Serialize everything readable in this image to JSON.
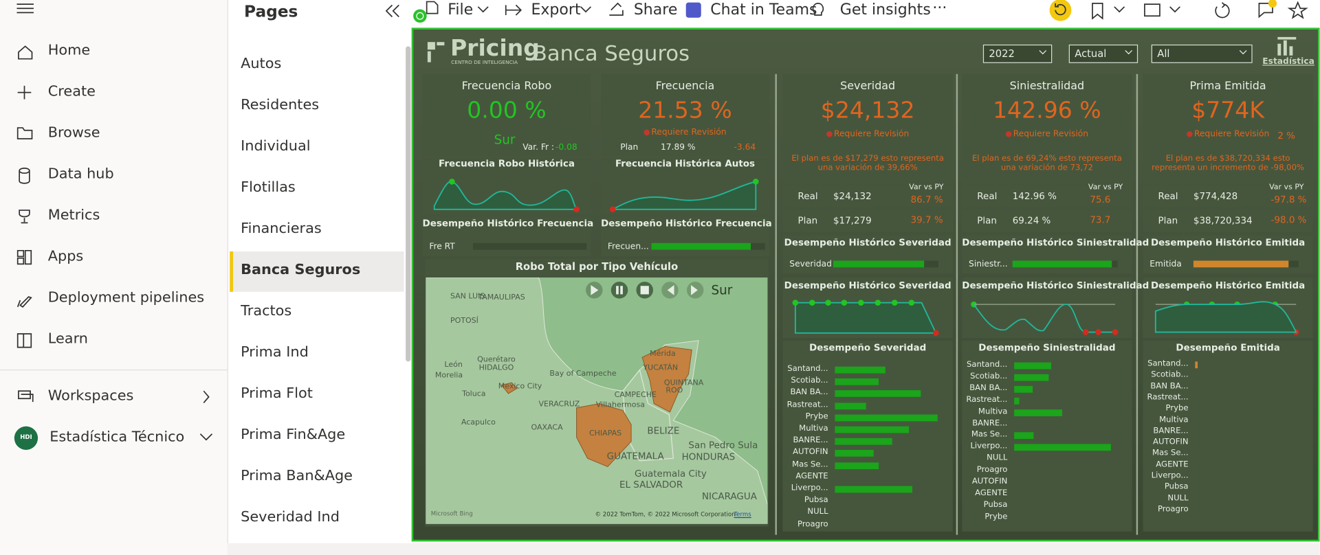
{
  "toolbar": {
    "items": [
      "File",
      "Export",
      "Share",
      "Chat in Teams",
      "Get insights"
    ]
  },
  "nav": {
    "items": [
      "Home",
      "Create",
      "Browse",
      "Data hub",
      "Metrics",
      "Apps",
      "Deployment pipelines",
      "Learn"
    ],
    "workspaces": "Workspaces",
    "workspace": "Estadística Técnico",
    "workspace_badge": "HDI"
  },
  "pages": {
    "title": "Pages",
    "items": [
      "Autos",
      "Residentes",
      "Individual",
      "Flotillas",
      "Financieras",
      "Banca Seguros",
      "Tractos",
      "Prima Ind",
      "Prima Flot",
      "Prima Fin&Age",
      "Prima Ban&Age",
      "Severidad Ind"
    ],
    "active": 5
  },
  "report": {
    "brand": "Pricing",
    "brand_sub": "CENTRO DE INTELIGENCIA",
    "title": "Banca Seguros",
    "filters": [
      "2022",
      "Actual",
      "All"
    ],
    "logo_label": "Estadística",
    "cards": [
      {
        "title": "Frecuencia Robo",
        "value": "0.00 %",
        "sub": "Sur",
        "var_label": "Var. Fr :",
        "var": "-0.08",
        "trend_title": "Frecuencia Robo Histórica",
        "hist_title": "Desempeño Histórico Frecuencia",
        "hist_label": "Fre RT",
        "hist_bar": 0
      },
      {
        "title": "Frecuencia",
        "value": "21.53 %",
        "status": "Requiere Revisión",
        "plan_label": "Plan",
        "plan": "17.89 %",
        "var": "-3.64",
        "trend_title": "Frecuencia Histórica Autos",
        "hist_title": "Desempeño Histórico Frecuencia",
        "hist_label": "Frecuen...",
        "hist_bar": 118
      }
    ],
    "map": {
      "title": "Robo Total por Tipo Vehículo",
      "player_label": "Sur",
      "labels": [
        "TAMAULIPAS",
        "SAN LUIS",
        "POTOSÍ",
        "Querétaro",
        "HIDALGO",
        "León",
        "Morelia",
        "Toluca",
        "Mexico City",
        "Bay of Campeche",
        "VERACRUZ",
        "CAMPECHE",
        "Villahermosa",
        "OAXACA",
        "Acapulco",
        "CHIAPAS",
        "Mérida",
        "YUCATÁN",
        "QUINTANA",
        "ROO",
        "BELIZE",
        "GUATEMALA",
        "San Pedro Sula",
        "HONDURAS",
        "Guatemala City",
        "EL SALVADOR",
        "NICARAGUA"
      ],
      "bing": "Microsoft Bing",
      "attribution": "© 2022 TomTom, © 2022 Microsoft Corporation",
      "terms": "Terms"
    },
    "columns": [
      {
        "title": "Severidad",
        "value": "$24,132",
        "status": "Requiere Revisión",
        "note": [
          "El plan es de $17,279 esto representa",
          "una variación de 39,66%"
        ],
        "real_label": "Real",
        "real": "$24,132",
        "var_header": "Var vs PY",
        "real_var": "86.7 %",
        "plan_label": "Plan",
        "plan": "$17,279",
        "plan_var": "39.7 %",
        "hist_title": "Desempeño Histórico Severidad",
        "hist_label": "Severidad",
        "hist_bar": 108,
        "trend_title": "Desempeño Histórico Severidad",
        "perf_title": "Desempeño Severidad",
        "perf_categories": [
          "Santand...",
          "Scotiab...",
          "BAN BA...",
          "Rastreat...",
          "Prybe",
          "Multiva",
          "BANRE...",
          "AUTOFIN",
          "Mas Se...",
          "AGENTE",
          "Liverpo...",
          "Pubsa",
          "NULL",
          "Proagro"
        ],
        "perf_values": [
          60,
          52,
          102,
          37,
          122,
          88,
          68,
          46,
          52,
          0,
          92,
          0,
          0,
          0
        ]
      },
      {
        "title": "Siniestralidad",
        "value": "142.96 %",
        "status": "Requiere Revisión",
        "note": [
          "El plan es de 69,24% esto representa",
          "una variación de 73,72"
        ],
        "real_label": "Real",
        "real": "142.96 %",
        "var_header": "Var vs PY",
        "real_var": "75.6",
        "plan_label": "Plan",
        "plan": "69.24 %",
        "plan_var": "73.7",
        "hist_title": "Desempeño Histórico Siniestralidad",
        "hist_label": "Siniestr...",
        "hist_bar": 118,
        "trend_title": "Desempeño Histórico Siniestralidad",
        "perf_title": "Desempeño Siniestralidad",
        "perf_categories": [
          "Santand...",
          "Scotiab...",
          "BAN BA...",
          "Rastreat...",
          "Multiva",
          "BANRE...",
          "Mas Se...",
          "Liverpo...",
          "NULL",
          "Proagro",
          "AUTOFIN",
          "AGENTE",
          "Pubsa",
          "Prybe"
        ],
        "perf_values": [
          44,
          41,
          22,
          6,
          57,
          0,
          23,
          115,
          0,
          0,
          0,
          0,
          0,
          0
        ]
      },
      {
        "title": "Prima Emitida",
        "value": "$774K",
        "status": "Requiere Revisión",
        "badge": "2 %",
        "note": [
          "El plan es de $38,720,334 esto",
          "representa un incremento de -98,00%"
        ],
        "real_label": "Real",
        "real": "$774,428",
        "var_header": "Var vs PY",
        "real_var": "-97.8 %",
        "plan_label": "Plan",
        "plan": "$38,720,334",
        "plan_var": "-98.0 %",
        "hist_title": "Desempeño Histórico Emitida",
        "hist_label": "Emitida",
        "hist_bar": 113,
        "trend_title": "Desempeño Histórico Emitida",
        "perf_title": "Desempeño Emitida",
        "perf_categories": [
          "Santand...",
          "Scotiab...",
          "BAN BA...",
          "Rastreat...",
          "Prybe",
          "Multiva",
          "BANRE...",
          "AUTOFIN",
          "Mas Se...",
          "AGENTE",
          "Liverpo...",
          "Pubsa",
          "NULL",
          "Proagro"
        ],
        "perf_values": [
          3,
          0,
          0,
          0,
          0,
          0,
          0,
          0,
          0,
          0,
          0,
          0,
          0,
          0
        ]
      }
    ]
  }
}
